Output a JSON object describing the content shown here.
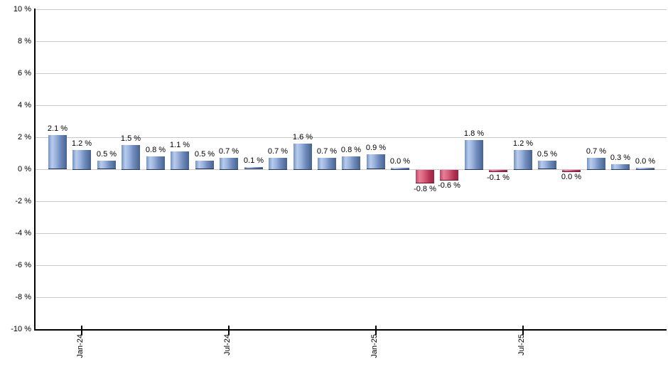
{
  "chart_data": {
    "type": "bar",
    "title": "",
    "description": "Monthly return percentages by month, positive months blue, negative months red",
    "categories": [
      "Dec-23",
      "Jan-24",
      "Feb-24",
      "Mar-24",
      "Apr-24",
      "May-24",
      "Jun-24",
      "Jul-24",
      "Aug-24",
      "Sep-24",
      "Oct-24",
      "Nov-24",
      "Dec-24",
      "Jan-25",
      "Feb-25",
      "Mar-25",
      "Apr-25",
      "May-25",
      "Jun-25",
      "Jul-25",
      "Aug-25",
      "Sep-25",
      "Oct-25",
      "Nov-25",
      "Dec-25"
    ],
    "bars": [
      {
        "month": "Dec-23",
        "value": 2.1,
        "label": "2.1 %",
        "color": "blue"
      },
      {
        "month": "Jan-24",
        "value": 1.2,
        "label": "1.2 %",
        "color": "blue"
      },
      {
        "month": "Feb-24",
        "value": 0.5,
        "label": "0.5 %",
        "color": "blue"
      },
      {
        "month": "Mar-24",
        "value": 1.5,
        "label": "1.5 %",
        "color": "blue"
      },
      {
        "month": "Apr-24",
        "value": 0.8,
        "label": "0.8 %",
        "color": "blue"
      },
      {
        "month": "May-24",
        "value": 1.1,
        "label": "1.1 %",
        "color": "blue"
      },
      {
        "month": "Jun-24",
        "value": 0.5,
        "label": "0.5 %",
        "color": "blue"
      },
      {
        "month": "Jul-24",
        "value": 0.7,
        "label": "0.7 %",
        "color": "blue"
      },
      {
        "month": "Aug-24",
        "value": 0.1,
        "label": "0.1 %",
        "color": "blue"
      },
      {
        "month": "Sep-24",
        "value": 0.7,
        "label": "0.7 %",
        "color": "blue"
      },
      {
        "month": "Oct-24",
        "value": 1.6,
        "label": "1.6 %",
        "color": "blue"
      },
      {
        "month": "Nov-24",
        "value": 0.7,
        "label": "0.7 %",
        "color": "blue"
      },
      {
        "month": "Dec-24",
        "value": 0.8,
        "label": "0.8 %",
        "color": "blue"
      },
      {
        "month": "Jan-25",
        "value": 0.9,
        "label": "0.9 %",
        "color": "blue"
      },
      {
        "month": "Feb-25",
        "value": 0.0,
        "label": "0.0 %",
        "color": "blue"
      },
      {
        "month": "Mar-25",
        "value": -0.8,
        "label": "-0.8 %",
        "color": "red"
      },
      {
        "month": "Apr-25",
        "value": -0.6,
        "label": "-0.6 %",
        "color": "red"
      },
      {
        "month": "May-25",
        "value": 1.8,
        "label": "1.8 %",
        "color": "blue"
      },
      {
        "month": "Jun-25",
        "value": -0.1,
        "label": "-0.1 %",
        "color": "red"
      },
      {
        "month": "Jul-25",
        "value": 1.2,
        "label": "1.2 %",
        "color": "blue"
      },
      {
        "month": "Aug-25",
        "value": 0.5,
        "label": "0.5 %",
        "color": "blue"
      },
      {
        "month": "Sep-25",
        "value": 0.0,
        "label": "0.0 %",
        "color": "red"
      },
      {
        "month": "Oct-25",
        "value": 0.7,
        "label": "0.7 %",
        "color": "blue"
      },
      {
        "month": "Nov-25",
        "value": 0.3,
        "label": "0.3 %",
        "color": "blue"
      },
      {
        "month": "Dec-25",
        "value": 0.0,
        "label": "0.0 %",
        "color": "blue"
      }
    ],
    "y_axis": {
      "min": -10,
      "max": 10,
      "tick_step": 2,
      "tick_labels": [
        "10 %",
        "8 %",
        "6 %",
        "4 %",
        "2 %",
        "0 %",
        "-2 %",
        "-4 %",
        "-6 %",
        "-8 %",
        "-10 %"
      ]
    },
    "x_axis": {
      "tick_labels": [
        {
          "label": "Jan-24",
          "bar_index": 1
        },
        {
          "label": "Jul-24",
          "bar_index": 7
        },
        {
          "label": "Jan-25",
          "bar_index": 13
        },
        {
          "label": "Jul-25",
          "bar_index": 19
        }
      ]
    },
    "grid": true,
    "legend": false
  },
  "colors": {
    "positive_bar_highlight": "#b7cbec",
    "positive_bar_dark": "#47628f",
    "negative_bar_highlight": "#e87e96",
    "negative_bar_dark": "#9e2343",
    "gridline": "#c9c9c9",
    "axis": "#000000",
    "background": "#ffffff",
    "text": "#000000"
  }
}
